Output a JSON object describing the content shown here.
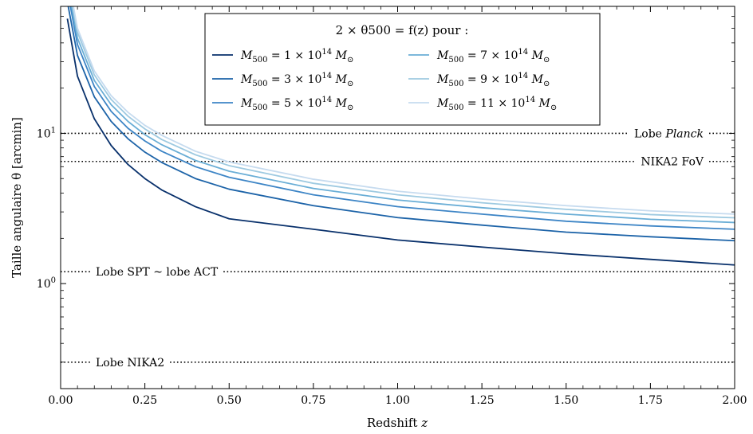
{
  "chart_data": {
    "type": "line",
    "xlabel": "Redshift",
    "xlabel_var": "z",
    "ylabel": "Taille angulaire θ [arcmin]",
    "xlim": [
      0.0,
      2.0
    ],
    "ylim": [
      0.2,
      70
    ],
    "yscale": "log",
    "grid": false,
    "x_ticks": [
      {
        "value": 0.0,
        "label": "0.00"
      },
      {
        "value": 0.25,
        "label": "0.25"
      },
      {
        "value": 0.5,
        "label": "0.50"
      },
      {
        "value": 0.75,
        "label": "0.75"
      },
      {
        "value": 1.0,
        "label": "1.00"
      },
      {
        "value": 1.25,
        "label": "1.25"
      },
      {
        "value": 1.5,
        "label": "1.50"
      },
      {
        "value": 1.75,
        "label": "1.75"
      },
      {
        "value": 2.0,
        "label": "2.00"
      }
    ],
    "y_ticks": [
      {
        "value": 1,
        "mantissa": "10",
        "exp": "0"
      },
      {
        "value": 10,
        "mantissa": "10",
        "exp": "1"
      }
    ],
    "legend": {
      "title": "2 × θ500 = f(z) pour :",
      "placement": "top-center",
      "columns": 2
    },
    "series": [
      {
        "name": "M500 = 1 × 10^14 M⊙",
        "mass": "1",
        "color": "#08306b",
        "x": [
          0.02,
          0.05,
          0.1,
          0.15,
          0.2,
          0.25,
          0.3,
          0.4,
          0.5,
          0.75,
          1.0,
          1.25,
          1.5,
          1.75,
          2.0
        ],
        "y": [
          58,
          24,
          12.5,
          8.3,
          6.2,
          5.0,
          4.2,
          3.25,
          2.7,
          2.3,
          1.95,
          1.75,
          1.58,
          1.45,
          1.33
        ]
      },
      {
        "name": "M500 = 3 × 10^14 M⊙",
        "mass": "3",
        "color": "#1c63a8",
        "x": [
          0.02,
          0.05,
          0.1,
          0.15,
          0.2,
          0.25,
          0.3,
          0.4,
          0.5,
          0.75,
          1.0,
          1.25,
          1.5,
          1.75,
          2.0
        ],
        "y": [
          75,
          33,
          17.5,
          12.0,
          9.2,
          7.5,
          6.4,
          5.0,
          4.25,
          3.3,
          2.75,
          2.45,
          2.2,
          2.05,
          1.93
        ]
      },
      {
        "name": "M500 = 5 × 10^14 M⊙",
        "mass": "5",
        "color": "#3d85c6",
        "x": [
          0.02,
          0.05,
          0.1,
          0.15,
          0.2,
          0.25,
          0.3,
          0.4,
          0.5,
          0.75,
          1.0,
          1.25,
          1.5,
          1.75,
          2.0
        ],
        "y": [
          90,
          39,
          20.5,
          14.0,
          10.8,
          8.9,
          7.6,
          6.0,
          5.1,
          3.9,
          3.25,
          2.9,
          2.6,
          2.42,
          2.3
        ]
      },
      {
        "name": "M500 = 7 × 10^14 M⊙",
        "mass": "7",
        "color": "#6aaed6",
        "x": [
          0.02,
          0.05,
          0.1,
          0.15,
          0.2,
          0.25,
          0.3,
          0.4,
          0.5,
          0.75,
          1.0,
          1.25,
          1.5,
          1.75,
          2.0
        ],
        "y": [
          100,
          43,
          22.5,
          15.5,
          12.0,
          9.8,
          8.4,
          6.6,
          5.6,
          4.3,
          3.6,
          3.2,
          2.9,
          2.68,
          2.55
        ]
      },
      {
        "name": "M500 = 9 × 10^14 M⊙",
        "mass": "9",
        "color": "#9ecae1",
        "x": [
          0.02,
          0.05,
          0.1,
          0.15,
          0.2,
          0.25,
          0.3,
          0.4,
          0.5,
          0.75,
          1.0,
          1.25,
          1.5,
          1.75,
          2.0
        ],
        "y": [
          108,
          47,
          24.5,
          16.8,
          13.0,
          10.7,
          9.1,
          7.2,
          6.1,
          4.65,
          3.9,
          3.45,
          3.12,
          2.88,
          2.74
        ]
      },
      {
        "name": "M500 = 11 × 10^14 M⊙",
        "mass": "11",
        "color": "#c6dbef",
        "x": [
          0.02,
          0.05,
          0.1,
          0.15,
          0.2,
          0.25,
          0.3,
          0.4,
          0.5,
          0.75,
          1.0,
          1.25,
          1.5,
          1.75,
          2.0
        ],
        "y": [
          115,
          50,
          26,
          17.8,
          13.8,
          11.3,
          9.7,
          7.6,
          6.45,
          4.95,
          4.12,
          3.65,
          3.3,
          3.05,
          2.9
        ]
      }
    ],
    "reference_lines": [
      {
        "label": "Lobe ",
        "label_italic": "Planck",
        "y": 10,
        "label_side": "right"
      },
      {
        "label": "NIKA2 FoV",
        "label_italic": "",
        "y": 6.5,
        "label_side": "right"
      },
      {
        "label": "Lobe SPT ~ lobe ACT",
        "label_italic": "",
        "y": 1.2,
        "label_side": "left"
      },
      {
        "label": "Lobe NIKA2",
        "label_italic": "",
        "y": 0.3,
        "label_side": "left"
      }
    ]
  }
}
